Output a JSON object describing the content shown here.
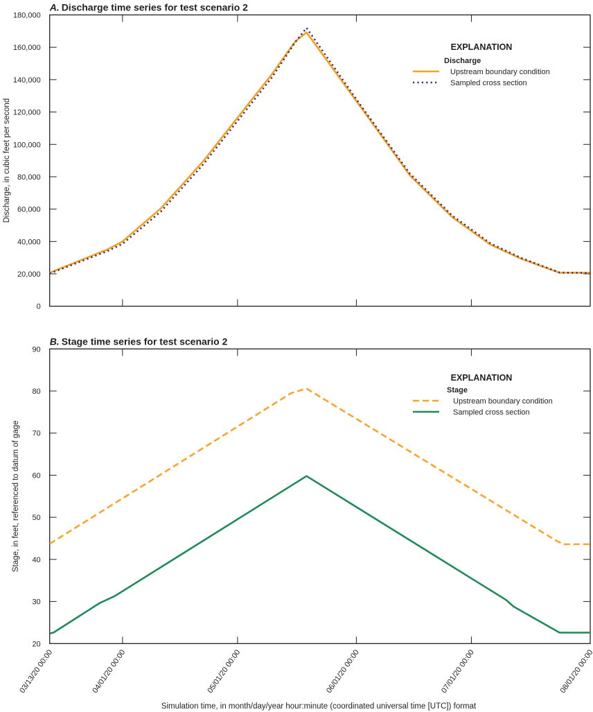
{
  "chart_data": [
    {
      "type": "line",
      "panel_label": "A.",
      "title": "Discharge time series for test scenario 2",
      "xlabel": "",
      "ylabel": "Discharge, in cubic feet per second",
      "xlim": [
        "2020-03-13",
        "2020-08-01"
      ],
      "ylim": [
        0,
        180000
      ],
      "yticks": [
        0,
        20000,
        40000,
        60000,
        80000,
        100000,
        120000,
        140000,
        160000,
        180000
      ],
      "ytick_labels": [
        "0",
        "20,000",
        "40,000",
        "60,000",
        "80,000",
        "100,000",
        "120,000",
        "140,000",
        "160,000",
        "180,000"
      ],
      "xticks": [
        "2020-03-13",
        "2020-04-01",
        "2020-05-01",
        "2020-06-01",
        "2020-07-01",
        "2020-08-01"
      ],
      "grid": false,
      "legend": {
        "placement": "top-right",
        "heading": "EXPLANATION",
        "subheading": "Discharge"
      },
      "series": [
        {
          "name": "Upstream boundary condition",
          "color": "#f7a21b",
          "style": "solid",
          "x": [
            "2020-03-13",
            "2020-03-28",
            "2020-04-01",
            "2020-04-11",
            "2020-04-22",
            "2020-05-01",
            "2020-05-10",
            "2020-05-16",
            "2020-05-19",
            "2020-06-02",
            "2020-06-15",
            "2020-06-26",
            "2020-07-06",
            "2020-07-14",
            "2020-07-24",
            "2020-08-01"
          ],
          "y": [
            20700,
            35000,
            40000,
            60500,
            89500,
            116500,
            143500,
            163500,
            169200,
            123500,
            80700,
            55000,
            38000,
            29300,
            20700,
            20700
          ]
        },
        {
          "name": "Sampled cross section",
          "color": "#3d2a8a",
          "style": "dotted",
          "x": [
            "2020-03-13",
            "2020-03-28",
            "2020-04-01",
            "2020-04-11",
            "2020-04-22",
            "2020-05-01",
            "2020-05-10",
            "2020-05-16",
            "2020-05-19",
            "2020-06-02",
            "2020-06-15",
            "2020-06-26",
            "2020-07-06",
            "2020-07-14",
            "2020-07-24",
            "2020-08-01"
          ],
          "y": [
            20200,
            34000,
            38500,
            58500,
            87500,
            114500,
            141500,
            163000,
            172000,
            124500,
            81800,
            56000,
            38800,
            29800,
            20800,
            20500
          ]
        }
      ]
    },
    {
      "type": "line",
      "panel_label": "B.",
      "title": "Stage time series for test scenario 2",
      "xlabel": "Simulation time, in month/day/year hour:minute (coordinated universal time [UTC]) format",
      "ylabel": "Stage, in feet, referenced to datum of gage",
      "xlim": [
        "2020-03-13",
        "2020-08-01"
      ],
      "ylim": [
        20,
        90
      ],
      "yticks": [
        20,
        30,
        40,
        50,
        60,
        70,
        80,
        90
      ],
      "ytick_labels": [
        "20",
        "30",
        "40",
        "50",
        "60",
        "70",
        "80",
        "90"
      ],
      "xticks": [
        "2020-03-13",
        "2020-04-01",
        "2020-05-01",
        "2020-06-01",
        "2020-07-01",
        "2020-08-01"
      ],
      "xtick_labels": [
        "03/13/20 00:00",
        "04/01/20 00:00",
        "05/01/20 00:00",
        "06/01/20 00:00",
        "07/01/20 00:00",
        "08/01/20 00:00"
      ],
      "grid": false,
      "legend": {
        "placement": "top-right",
        "heading": "EXPLANATION",
        "subheading": "Stage"
      },
      "series": [
        {
          "name": "Upstream boundary condition",
          "color": "#f9a42c",
          "style": "dashed",
          "x": [
            "2020-03-13",
            "2020-05-15",
            "2020-05-19",
            "2020-07-23",
            "2020-07-25",
            "2020-08-01"
          ],
          "y": [
            43.7,
            79.5,
            80.6,
            44.5,
            43.6,
            43.6
          ]
        },
        {
          "name": "Sampled cross section",
          "color": "#1f8a57",
          "style": "solid",
          "x": [
            "2020-03-13",
            "2020-03-14",
            "2020-03-26",
            "2020-03-30",
            "2020-05-19",
            "2020-07-10",
            "2020-07-12",
            "2020-07-24",
            "2020-08-01"
          ],
          "y": [
            22.4,
            22.6,
            29.6,
            31.3,
            59.8,
            30.4,
            28.8,
            22.6,
            22.6
          ]
        }
      ]
    }
  ]
}
